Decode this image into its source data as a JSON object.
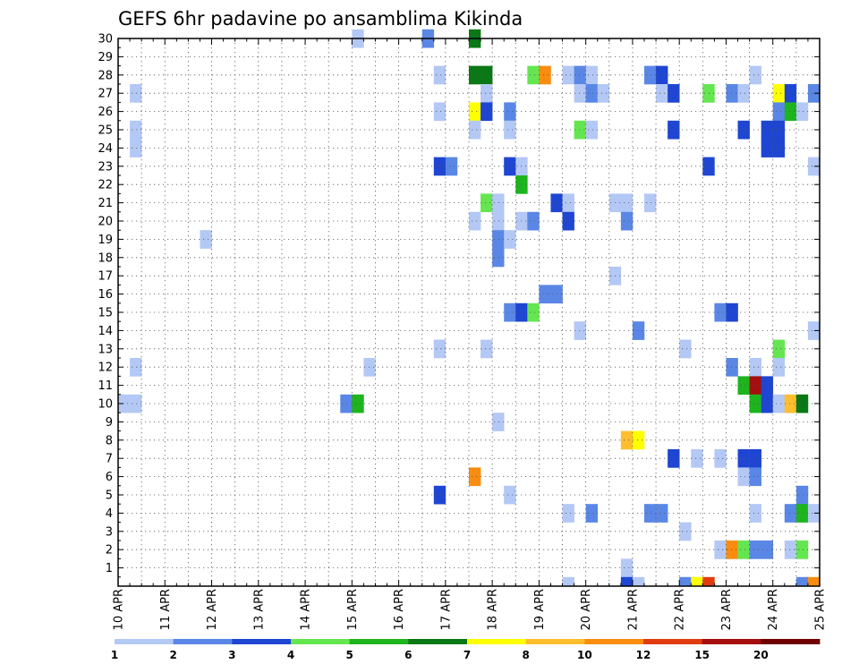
{
  "chart_data": {
    "type": "heatmap",
    "title": "GEFS 6hr padavine po ansamblima Kikinda",
    "x_tick_labels": [
      "10 APR",
      "11 APR",
      "12 APR",
      "13 APR",
      "14 APR",
      "15 APR",
      "16 APR",
      "17 APR",
      "18 APR",
      "19 APR",
      "20 APR",
      "21 APR",
      "22 APR",
      "23 APR",
      "24 APR",
      "25 APR"
    ],
    "y_tick_labels": [
      "1",
      "2",
      "3",
      "4",
      "5",
      "6",
      "7",
      "8",
      "9",
      "10",
      "11",
      "12",
      "13",
      "14",
      "15",
      "16",
      "17",
      "18",
      "19",
      "20",
      "21",
      "22",
      "23",
      "24",
      "25",
      "26",
      "27",
      "28",
      "29",
      "30"
    ],
    "x_range_days": [
      10,
      25
    ],
    "y_range_members": [
      0,
      30
    ],
    "grid": true,
    "legend_position": "bottom",
    "colorbar": {
      "labels": [
        "1",
        "2",
        "3",
        "4",
        "5",
        "6",
        "7",
        "8",
        "10",
        "12",
        "15",
        "20"
      ],
      "colors": [
        "#b4c8f5",
        "#5a87e6",
        "#1e46d2",
        "#64e650",
        "#1eb41e",
        "#0a7814",
        "#ffff00",
        "#ffbe2d",
        "#fa8c0f",
        "#e13c0f",
        "#a50f0f",
        "#6e0000"
      ]
    },
    "cells": [
      {
        "member": 30,
        "day": 15.0,
        "level": 1
      },
      {
        "member": 30,
        "day": 16.5,
        "level": 2
      },
      {
        "member": 30,
        "day": 17.5,
        "level": 6
      },
      {
        "member": 28,
        "day": 16.75,
        "level": 1
      },
      {
        "member": 28,
        "day": 17.5,
        "level": 6
      },
      {
        "member": 28,
        "day": 17.75,
        "level": 6
      },
      {
        "member": 28,
        "day": 18.75,
        "level": 4
      },
      {
        "member": 28,
        "day": 19.0,
        "level": 9
      },
      {
        "member": 28,
        "day": 19.5,
        "level": 1
      },
      {
        "member": 28,
        "day": 19.75,
        "level": 2
      },
      {
        "member": 28,
        "day": 20.0,
        "level": 1
      },
      {
        "member": 28,
        "day": 21.25,
        "level": 2
      },
      {
        "member": 28,
        "day": 21.5,
        "level": 3
      },
      {
        "member": 28,
        "day": 23.5,
        "level": 1
      },
      {
        "member": 27,
        "day": 10.25,
        "level": 1
      },
      {
        "member": 27,
        "day": 17.75,
        "level": 1
      },
      {
        "member": 27,
        "day": 19.75,
        "level": 1
      },
      {
        "member": 27,
        "day": 20.0,
        "level": 2
      },
      {
        "member": 27,
        "day": 20.25,
        "level": 1
      },
      {
        "member": 27,
        "day": 21.5,
        "level": 1
      },
      {
        "member": 27,
        "day": 21.75,
        "level": 3
      },
      {
        "member": 27,
        "day": 22.5,
        "level": 4
      },
      {
        "member": 27,
        "day": 23.0,
        "level": 2
      },
      {
        "member": 27,
        "day": 23.25,
        "level": 1
      },
      {
        "member": 27,
        "day": 24.0,
        "level": 7
      },
      {
        "member": 27,
        "day": 24.25,
        "level": 3
      },
      {
        "member": 27,
        "day": 24.75,
        "level": 2
      },
      {
        "member": 26,
        "day": 16.75,
        "level": 1
      },
      {
        "member": 26,
        "day": 17.5,
        "level": 7
      },
      {
        "member": 26,
        "day": 17.75,
        "level": 3
      },
      {
        "member": 26,
        "day": 18.25,
        "level": 2
      },
      {
        "member": 26,
        "day": 24.0,
        "level": 2
      },
      {
        "member": 26,
        "day": 24.25,
        "level": 5
      },
      {
        "member": 26,
        "day": 24.5,
        "level": 1
      },
      {
        "member": 25,
        "day": 10.25,
        "level": 1
      },
      {
        "member": 25,
        "day": 17.5,
        "level": 1
      },
      {
        "member": 25,
        "day": 18.25,
        "level": 1
      },
      {
        "member": 25,
        "day": 19.75,
        "level": 4
      },
      {
        "member": 25,
        "day": 20.0,
        "level": 1
      },
      {
        "member": 25,
        "day": 21.75,
        "level": 3
      },
      {
        "member": 25,
        "day": 23.25,
        "level": 3
      },
      {
        "member": 25,
        "day": 23.75,
        "level": 3
      },
      {
        "member": 25,
        "day": 24.0,
        "level": 3
      },
      {
        "member": 24,
        "day": 10.25,
        "level": 1
      },
      {
        "member": 24,
        "day": 23.75,
        "level": 3
      },
      {
        "member": 24,
        "day": 24.0,
        "level": 3
      },
      {
        "member": 23,
        "day": 16.75,
        "level": 3
      },
      {
        "member": 23,
        "day": 17.0,
        "level": 2
      },
      {
        "member": 23,
        "day": 18.25,
        "level": 3
      },
      {
        "member": 23,
        "day": 18.5,
        "level": 1
      },
      {
        "member": 23,
        "day": 22.5,
        "level": 3
      },
      {
        "member": 23,
        "day": 24.75,
        "level": 1
      },
      {
        "member": 22,
        "day": 18.5,
        "level": 5
      },
      {
        "member": 21,
        "day": 17.75,
        "level": 4
      },
      {
        "member": 21,
        "day": 18.0,
        "level": 1
      },
      {
        "member": 21,
        "day": 19.25,
        "level": 3
      },
      {
        "member": 21,
        "day": 19.5,
        "level": 1
      },
      {
        "member": 21,
        "day": 20.5,
        "level": 1
      },
      {
        "member": 21,
        "day": 20.75,
        "level": 1
      },
      {
        "member": 21,
        "day": 21.25,
        "level": 1
      },
      {
        "member": 20,
        "day": 17.5,
        "level": 1
      },
      {
        "member": 20,
        "day": 18.0,
        "level": 1
      },
      {
        "member": 20,
        "day": 18.5,
        "level": 1
      },
      {
        "member": 20,
        "day": 18.75,
        "level": 2
      },
      {
        "member": 20,
        "day": 19.5,
        "level": 3
      },
      {
        "member": 20,
        "day": 20.75,
        "level": 2
      },
      {
        "member": 19,
        "day": 11.75,
        "level": 1
      },
      {
        "member": 19,
        "day": 18.0,
        "level": 2
      },
      {
        "member": 19,
        "day": 18.25,
        "level": 1
      },
      {
        "member": 18,
        "day": 18.0,
        "level": 2
      },
      {
        "member": 17,
        "day": 20.5,
        "level": 1
      },
      {
        "member": 16,
        "day": 19.0,
        "level": 2
      },
      {
        "member": 16,
        "day": 19.25,
        "level": 2
      },
      {
        "member": 15,
        "day": 18.25,
        "level": 2
      },
      {
        "member": 15,
        "day": 18.5,
        "level": 3
      },
      {
        "member": 15,
        "day": 18.75,
        "level": 4
      },
      {
        "member": 15,
        "day": 22.75,
        "level": 2
      },
      {
        "member": 15,
        "day": 23.0,
        "level": 3
      },
      {
        "member": 14,
        "day": 19.75,
        "level": 1
      },
      {
        "member": 14,
        "day": 21.0,
        "level": 2
      },
      {
        "member": 14,
        "day": 24.75,
        "level": 1
      },
      {
        "member": 13,
        "day": 16.75,
        "level": 1
      },
      {
        "member": 13,
        "day": 17.75,
        "level": 1
      },
      {
        "member": 13,
        "day": 22.0,
        "level": 1
      },
      {
        "member": 13,
        "day": 24.0,
        "level": 4
      },
      {
        "member": 12,
        "day": 10.25,
        "level": 1
      },
      {
        "member": 12,
        "day": 15.25,
        "level": 1
      },
      {
        "member": 12,
        "day": 23.0,
        "level": 2
      },
      {
        "member": 12,
        "day": 23.5,
        "level": 1
      },
      {
        "member": 12,
        "day": 24.0,
        "level": 1
      },
      {
        "member": 11,
        "day": 23.25,
        "level": 5
      },
      {
        "member": 11,
        "day": 23.5,
        "level": 11
      },
      {
        "member": 11,
        "day": 23.75,
        "level": 3
      },
      {
        "member": 10,
        "day": 10.0,
        "level": 1
      },
      {
        "member": 10,
        "day": 10.25,
        "level": 1
      },
      {
        "member": 10,
        "day": 14.75,
        "level": 2
      },
      {
        "member": 10,
        "day": 15.0,
        "level": 5
      },
      {
        "member": 10,
        "day": 23.5,
        "level": 5
      },
      {
        "member": 10,
        "day": 23.75,
        "level": 3
      },
      {
        "member": 10,
        "day": 24.0,
        "level": 1
      },
      {
        "member": 10,
        "day": 24.25,
        "level": 8
      },
      {
        "member": 10,
        "day": 24.5,
        "level": 6
      },
      {
        "member": 9,
        "day": 18.0,
        "level": 1
      },
      {
        "member": 8,
        "day": 20.75,
        "level": 8
      },
      {
        "member": 8,
        "day": 21.0,
        "level": 7
      },
      {
        "member": 7,
        "day": 21.75,
        "level": 3
      },
      {
        "member": 7,
        "day": 22.25,
        "level": 1
      },
      {
        "member": 7,
        "day": 22.75,
        "level": 1
      },
      {
        "member": 7,
        "day": 23.25,
        "level": 3
      },
      {
        "member": 7,
        "day": 23.5,
        "level": 3
      },
      {
        "member": 6,
        "day": 17.5,
        "level": 9
      },
      {
        "member": 6,
        "day": 23.25,
        "level": 1
      },
      {
        "member": 6,
        "day": 23.5,
        "level": 2
      },
      {
        "member": 5,
        "day": 16.75,
        "level": 3
      },
      {
        "member": 5,
        "day": 18.25,
        "level": 1
      },
      {
        "member": 5,
        "day": 24.5,
        "level": 2
      },
      {
        "member": 4,
        "day": 19.5,
        "level": 1
      },
      {
        "member": 4,
        "day": 20.0,
        "level": 2
      },
      {
        "member": 4,
        "day": 21.25,
        "level": 2
      },
      {
        "member": 4,
        "day": 21.5,
        "level": 2
      },
      {
        "member": 4,
        "day": 23.5,
        "level": 1
      },
      {
        "member": 4,
        "day": 24.25,
        "level": 2
      },
      {
        "member": 4,
        "day": 24.5,
        "level": 5
      },
      {
        "member": 4,
        "day": 24.75,
        "level": 1
      },
      {
        "member": 3,
        "day": 22.0,
        "level": 1
      },
      {
        "member": 2,
        "day": 22.75,
        "level": 1
      },
      {
        "member": 2,
        "day": 23.0,
        "level": 9
      },
      {
        "member": 2,
        "day": 23.25,
        "level": 4
      },
      {
        "member": 2,
        "day": 23.5,
        "level": 2
      },
      {
        "member": 2,
        "day": 23.75,
        "level": 2
      },
      {
        "member": 2,
        "day": 24.25,
        "level": 1
      },
      {
        "member": 2,
        "day": 24.5,
        "level": 4
      },
      {
        "member": 1,
        "day": 20.75,
        "level": 1
      },
      {
        "member": 0,
        "day": 19.5,
        "level": 1
      },
      {
        "member": 0,
        "day": 20.75,
        "level": 3
      },
      {
        "member": 0,
        "day": 21.0,
        "level": 1
      },
      {
        "member": 0,
        "day": 22.0,
        "level": 2
      },
      {
        "member": 0,
        "day": 22.25,
        "level": 7
      },
      {
        "member": 0,
        "day": 22.5,
        "level": 10
      },
      {
        "member": 0,
        "day": 24.5,
        "level": 2
      },
      {
        "member": 0,
        "day": 24.75,
        "level": 9
      }
    ]
  }
}
